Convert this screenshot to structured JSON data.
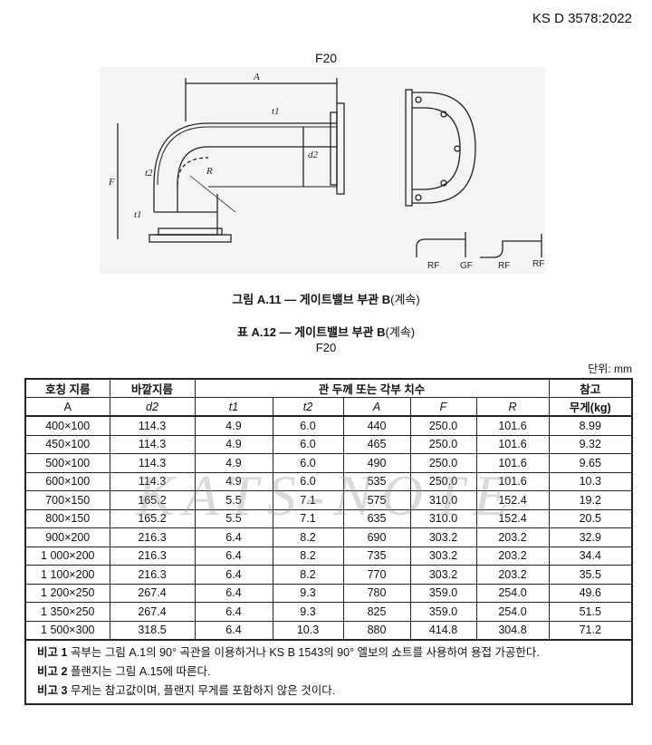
{
  "header": {
    "standard": "KS D 3578:2022"
  },
  "figure": {
    "label_top": "F20",
    "dim_labels": {
      "A": "A",
      "t1_top": "t1",
      "d2": "d2",
      "t2": "t2",
      "R": "R",
      "F": "F",
      "t1_left": "t1",
      "rf1": "RF",
      "gf": "GF",
      "rf2": "RF",
      "rf3": "RF"
    },
    "caption_prefix": "그림 A.11 — 게이트밸브 부관 B",
    "caption_suffix": "(계속)"
  },
  "table": {
    "title_prefix": "표 A.12 — 게이트밸브 부관 B",
    "title_suffix": "(계속)",
    "subtitle": "F20",
    "unit": "단위: mm",
    "headers": {
      "nominal": "호칭 지름",
      "outer": "바깥지름",
      "dims": "관 두께 또는 각부 치수",
      "ref": "참고",
      "nominal_unit": "A",
      "d2": "d2",
      "t1": "t1",
      "t2": "t2",
      "A": "A",
      "F": "F",
      "R": "R",
      "weight": "무게(kg)"
    },
    "rows": [
      [
        "400×100",
        "114.3",
        "4.9",
        "6.0",
        "440",
        "250.0",
        "101.6",
        "8.99"
      ],
      [
        "450×100",
        "114.3",
        "4.9",
        "6.0",
        "465",
        "250.0",
        "101.6",
        "9.32"
      ],
      [
        "500×100",
        "114.3",
        "4.9",
        "6.0",
        "490",
        "250.0",
        "101.6",
        "9.65"
      ],
      [
        "600×100",
        "114.3",
        "4.9",
        "6.0",
        "535",
        "250.0",
        "101.6",
        "10.3"
      ],
      [
        "700×150",
        "165.2",
        "5.5",
        "7.1",
        "575",
        "310.0",
        "152.4",
        "19.2"
      ],
      [
        "800×150",
        "165.2",
        "5.5",
        "7.1",
        "635",
        "310.0",
        "152.4",
        "20.5"
      ],
      [
        "900×200",
        "216.3",
        "6.4",
        "8.2",
        "690",
        "303.2",
        "203.2",
        "32.9"
      ],
      [
        "1 000×200",
        "216.3",
        "6.4",
        "8.2",
        "735",
        "303.2",
        "203.2",
        "34.4"
      ],
      [
        "1 100×200",
        "216.3",
        "6.4",
        "8.2",
        "770",
        "303.2",
        "203.2",
        "35.5"
      ],
      [
        "1 200×250",
        "267.4",
        "6.4",
        "9.3",
        "780",
        "359.0",
        "254.0",
        "49.6"
      ],
      [
        "1 350×250",
        "267.4",
        "6.4",
        "9.3",
        "825",
        "359.0",
        "254.0",
        "51.5"
      ],
      [
        "1 500×300",
        "318.5",
        "6.4",
        "10.3",
        "880",
        "414.8",
        "304.8",
        "71.2"
      ]
    ],
    "notes": [
      {
        "label": "비고 1",
        "text": "곡부는 그림 A.1의 90° 곡관을 이용하거나 KS B 1543의 90° 엘보의 쇼트를 사용하여 용접 가공한다."
      },
      {
        "label": "비고 2",
        "text": "플랜지는 그림 A.15에 따른다."
      },
      {
        "label": "비고 3",
        "text": "무게는 참고값이며, 플랜지 무게를 포함하지 않은 것이다."
      }
    ]
  },
  "watermark": "KATS-NOTE"
}
